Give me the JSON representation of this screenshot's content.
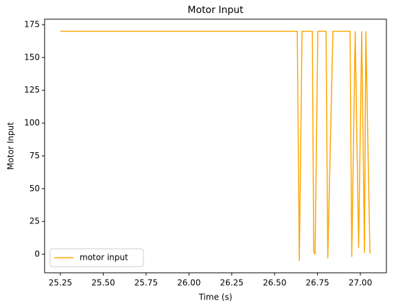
{
  "chart_data": {
    "type": "line",
    "title": "Motor Input",
    "x_label": "Time (s)",
    "y_label": "Motor Input",
    "series": [
      {
        "name": "motor input",
        "color": "#ffa500",
        "x": [
          25.25,
          26.632,
          26.644,
          26.66,
          26.72,
          26.728,
          26.736,
          26.752,
          26.8,
          26.81,
          26.84,
          26.94,
          26.95,
          26.97,
          26.99,
          27.008,
          27.024,
          27.032,
          27.056
        ],
        "values": [
          170,
          170,
          -5,
          170,
          170,
          2,
          0,
          170,
          170,
          -3,
          170,
          170,
          -2,
          170,
          5,
          170,
          1,
          170,
          0.5
        ]
      }
    ],
    "xlim": [
      25.158,
      27.152
    ],
    "ylim": [
      -14.1,
      179.2
    ],
    "xticks": [
      {
        "value": 25.25,
        "label": "25.25"
      },
      {
        "value": 25.5,
        "label": "25.50"
      },
      {
        "value": 25.75,
        "label": "25.75"
      },
      {
        "value": 26,
        "label": "26.00"
      },
      {
        "value": 26.25,
        "label": "26.25"
      },
      {
        "value": 26.5,
        "label": "26.50"
      },
      {
        "value": 26.75,
        "label": "26.75"
      },
      {
        "value": 27,
        "label": "27.00"
      }
    ],
    "yticks": [
      0,
      25,
      50,
      75,
      100,
      125,
      150,
      175
    ],
    "grid": false,
    "legend": "lower left"
  }
}
